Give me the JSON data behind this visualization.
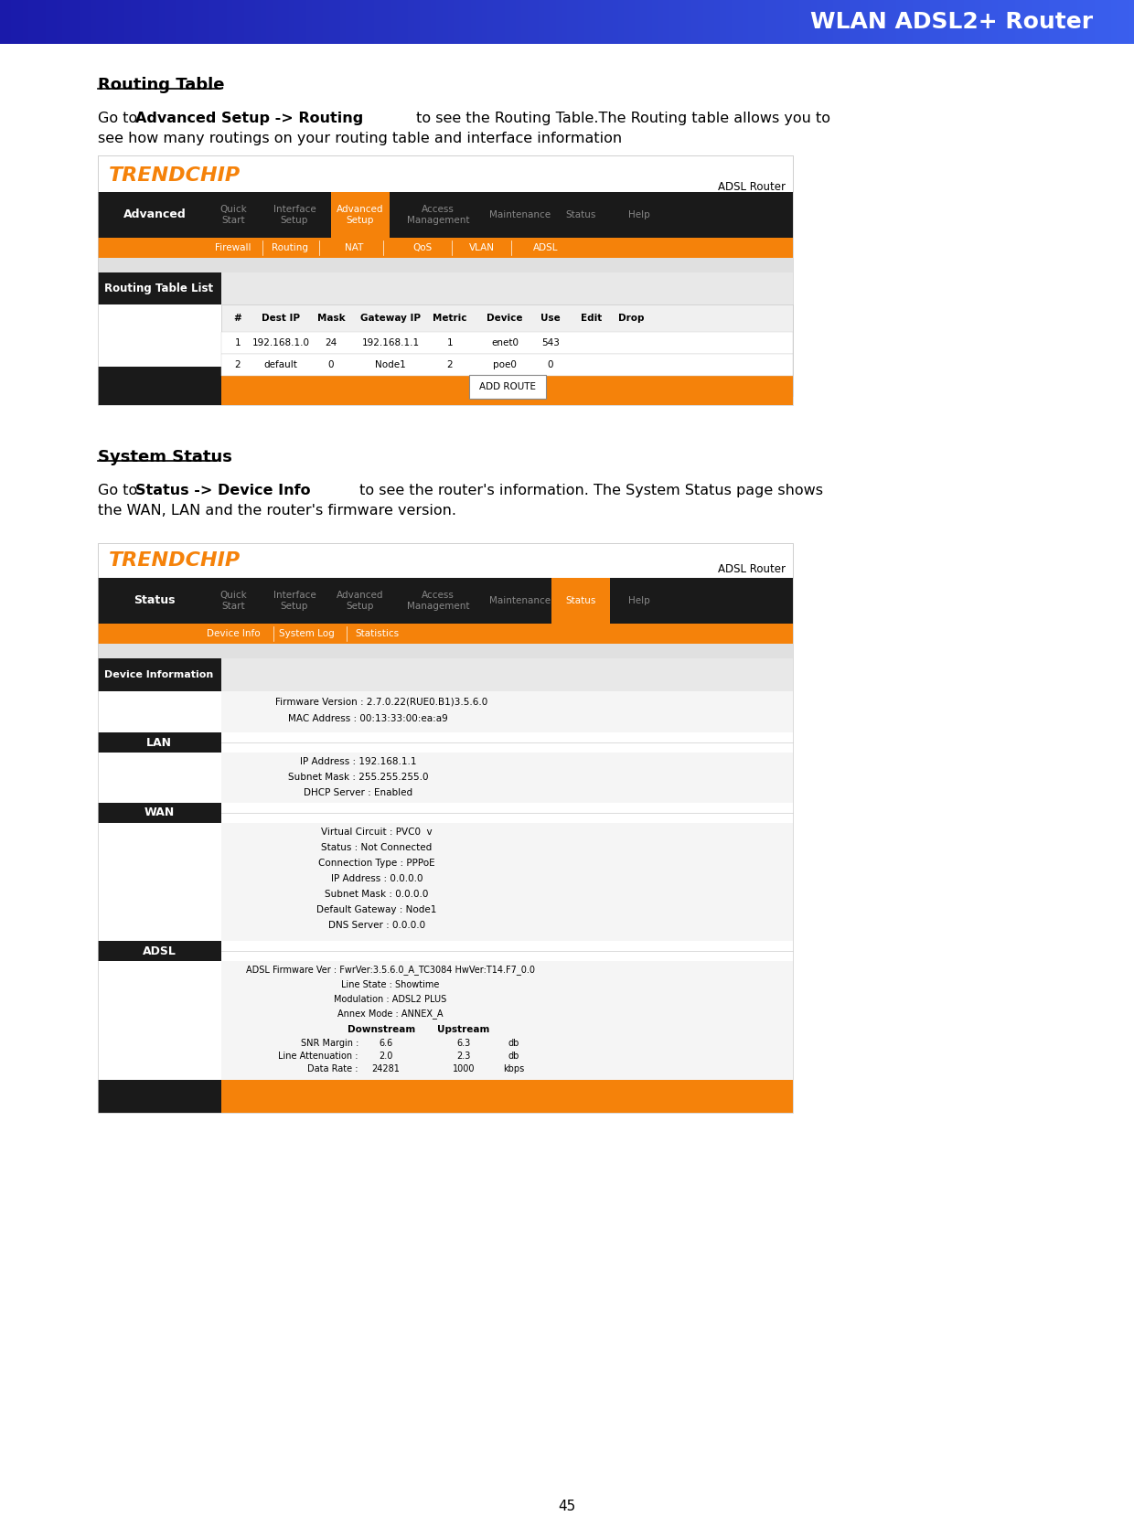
{
  "header_text": "WLAN ADSL2+ Router",
  "header_gradient_left": "#1a1aaa",
  "header_gradient_right": "#3a5fee",
  "bg_color": "#ffffff",
  "page_number": "45",
  "section1_title": "Routing Table",
  "section2_title": "System Status",
  "trendchip_color": "#f5820a",
  "orange_color": "#f5820a",
  "black_color": "#1a1a1a",
  "nav_text_gray": "#888888",
  "light_gray": "#e8e8e8",
  "mid_gray": "#cccccc",
  "dark_gray": "#e0e0e0"
}
